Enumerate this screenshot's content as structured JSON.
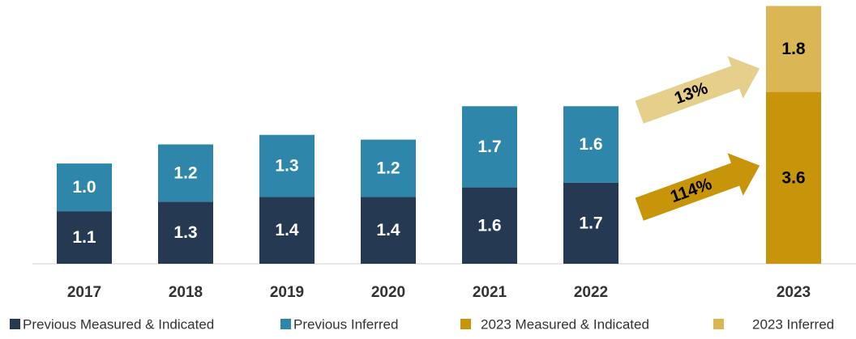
{
  "chart_data": {
    "type": "bar",
    "stacked": true,
    "categories": [
      "2017",
      "2018",
      "2019",
      "2020",
      "2021",
      "2022",
      "2023"
    ],
    "series": [
      {
        "name": "Previous Measured & Indicated",
        "color": "#253a52",
        "label_color": "#ffffff",
        "values": [
          1.1,
          1.3,
          1.4,
          1.4,
          1.6,
          1.7,
          null
        ],
        "value_labels": [
          "1.1",
          "1.3",
          "1.4",
          "1.4",
          "1.6",
          "1.7",
          null
        ]
      },
      {
        "name": "Previous Inferred",
        "color": "#2e86ab",
        "label_color": "#ffffff",
        "values": [
          1.0,
          1.2,
          1.3,
          1.2,
          1.7,
          1.6,
          null
        ],
        "value_labels": [
          "1.0",
          "1.2",
          "1.3",
          "1.2",
          "1.7",
          "1.6",
          null
        ]
      },
      {
        "name": "2023 Measured & Indicated",
        "color": "#c8940a",
        "label_color": "#000000",
        "values": [
          null,
          null,
          null,
          null,
          null,
          null,
          3.6
        ],
        "value_labels": [
          null,
          null,
          null,
          null,
          null,
          null,
          "3.6"
        ]
      },
      {
        "name": "2023 Inferred",
        "color": "#dbb655",
        "label_color": "#000000",
        "values": [
          null,
          null,
          null,
          null,
          null,
          null,
          1.8
        ],
        "value_labels": [
          null,
          null,
          null,
          null,
          null,
          null,
          "1.8"
        ]
      }
    ],
    "annotations": [
      "13%",
      "114%"
    ],
    "ylim": [
      0,
      5.5
    ]
  }
}
